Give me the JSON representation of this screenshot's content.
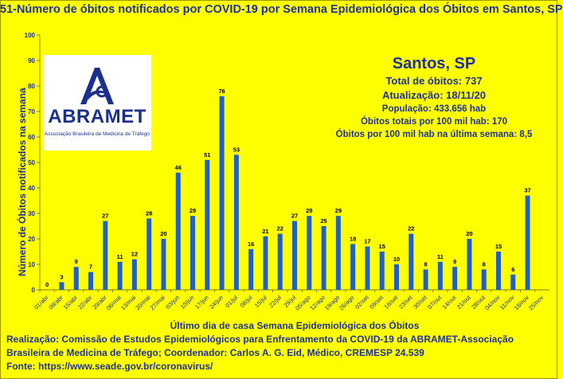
{
  "title": "51-Número de óbitos notificados por COVID-19 por Semana Epidemiológica dos Óbitos  em Santos, SP",
  "info": {
    "city": "Santos, SP",
    "total": "Total de óbitos: 737",
    "updated": "Atualização: 18/11/20",
    "population": "População: 433.656 hab",
    "rate_total": "Óbitos totais por 100 mil hab: 170",
    "rate_last_week": "Óbitos por 100 mil hab na última semana: 8,5"
  },
  "logo": {
    "name": "ABRAMET",
    "subtitle": "Associação Brasileira de Medicina de Tráfego"
  },
  "footer": {
    "line1": "Realização: Comissão de Estudos Epidemiológicos para Enfrentamento da COVID-19 da ABRAMET-Associação",
    "line2": "Brasileira de Medicina de Tráfego; Coordenador: Carlos A. G. Eid, Médico, CREMESP 24.539",
    "line3": "Fonte: https://www.seade.gov.br/coronavirus/"
  },
  "colors": {
    "background": "#ffff00",
    "bar": "#1f5fd6",
    "text": "#1f2fa0"
  },
  "chart_data": {
    "type": "bar",
    "title": "51-Número de óbitos notificados por COVID-19 por Semana Epidemiológica dos Óbitos  em Santos, SP",
    "xlabel": "Último dia de casa Semana Epidemiológica dos Óbitos",
    "ylabel": "Número de Óbitos notificados na semana",
    "ylim": [
      0,
      100
    ],
    "yticks": [
      0,
      10,
      20,
      30,
      40,
      50,
      60,
      70,
      80,
      90,
      100
    ],
    "grid": false,
    "categories": [
      "01/abr",
      "08/abr",
      "15/abr",
      "22/abr",
      "29/abr",
      "06/mai",
      "13/mai",
      "20/mai",
      "27/mai",
      "03/jun",
      "10/jun",
      "17/jun",
      "24/jun",
      "01/jul",
      "08/jul",
      "15/jul",
      "22/jul",
      "29/jul",
      "05/ago",
      "12/ago",
      "19/ago",
      "26/ago",
      "02/set",
      "09/set",
      "16/set",
      "23/set",
      "30/set",
      "07/out",
      "14/out",
      "21/out",
      "28/out",
      "04/nov",
      "11/nov",
      "18/nov",
      "25/nov"
    ],
    "values": [
      0,
      3,
      9,
      7,
      27,
      11,
      12,
      28,
      20,
      46,
      29,
      51,
      76,
      53,
      16,
      21,
      22,
      27,
      29,
      25,
      29,
      18,
      17,
      15,
      10,
      22,
      8,
      11,
      9,
      20,
      8,
      15,
      6,
      37,
      null
    ],
    "data_labels": [
      "0",
      "3",
      "9",
      "7",
      "27",
      "11",
      "12",
      "28",
      "20",
      "46",
      "29",
      "51",
      "76",
      "53",
      "16",
      "21",
      "22",
      "27",
      "29",
      "25",
      "29",
      "18",
      "17",
      "15",
      "10",
      "22",
      "8",
      "11",
      "9",
      "20",
      "8",
      "15",
      "6",
      "37",
      ""
    ]
  }
}
